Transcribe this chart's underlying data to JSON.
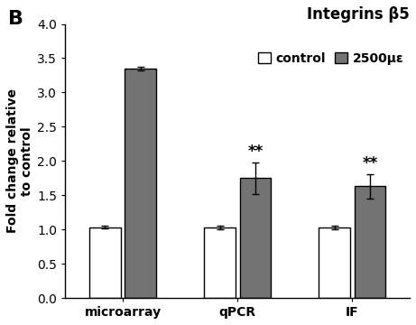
{
  "title": "Integrins β5",
  "panel_label": "B",
  "ylabel": "Fold change relative\nto control",
  "groups": [
    "microarray",
    "qPCR",
    "IF"
  ],
  "control_values": [
    1.03,
    1.03,
    1.03
  ],
  "treatment_values": [
    3.35,
    1.75,
    1.63
  ],
  "control_errors": [
    0.02,
    0.03,
    0.03
  ],
  "treatment_errors": [
    0.03,
    0.23,
    0.18
  ],
  "significance": [
    null,
    "**",
    "**"
  ],
  "ylim": [
    0,
    4.0
  ],
  "yticks": [
    0,
    0.5,
    1.0,
    1.5,
    2.0,
    2.5,
    3.0,
    3.5,
    4.0
  ],
  "bar_width": 0.3,
  "control_color": "#ffffff",
  "treatment_color": "#737373",
  "bar_edgecolor": "#000000",
  "background_color": "#ffffff",
  "legend_labels": [
    "control",
    "2500με"
  ],
  "title_fontsize": 12,
  "axis_fontsize": 10,
  "tick_fontsize": 10,
  "sig_fontsize": 12
}
